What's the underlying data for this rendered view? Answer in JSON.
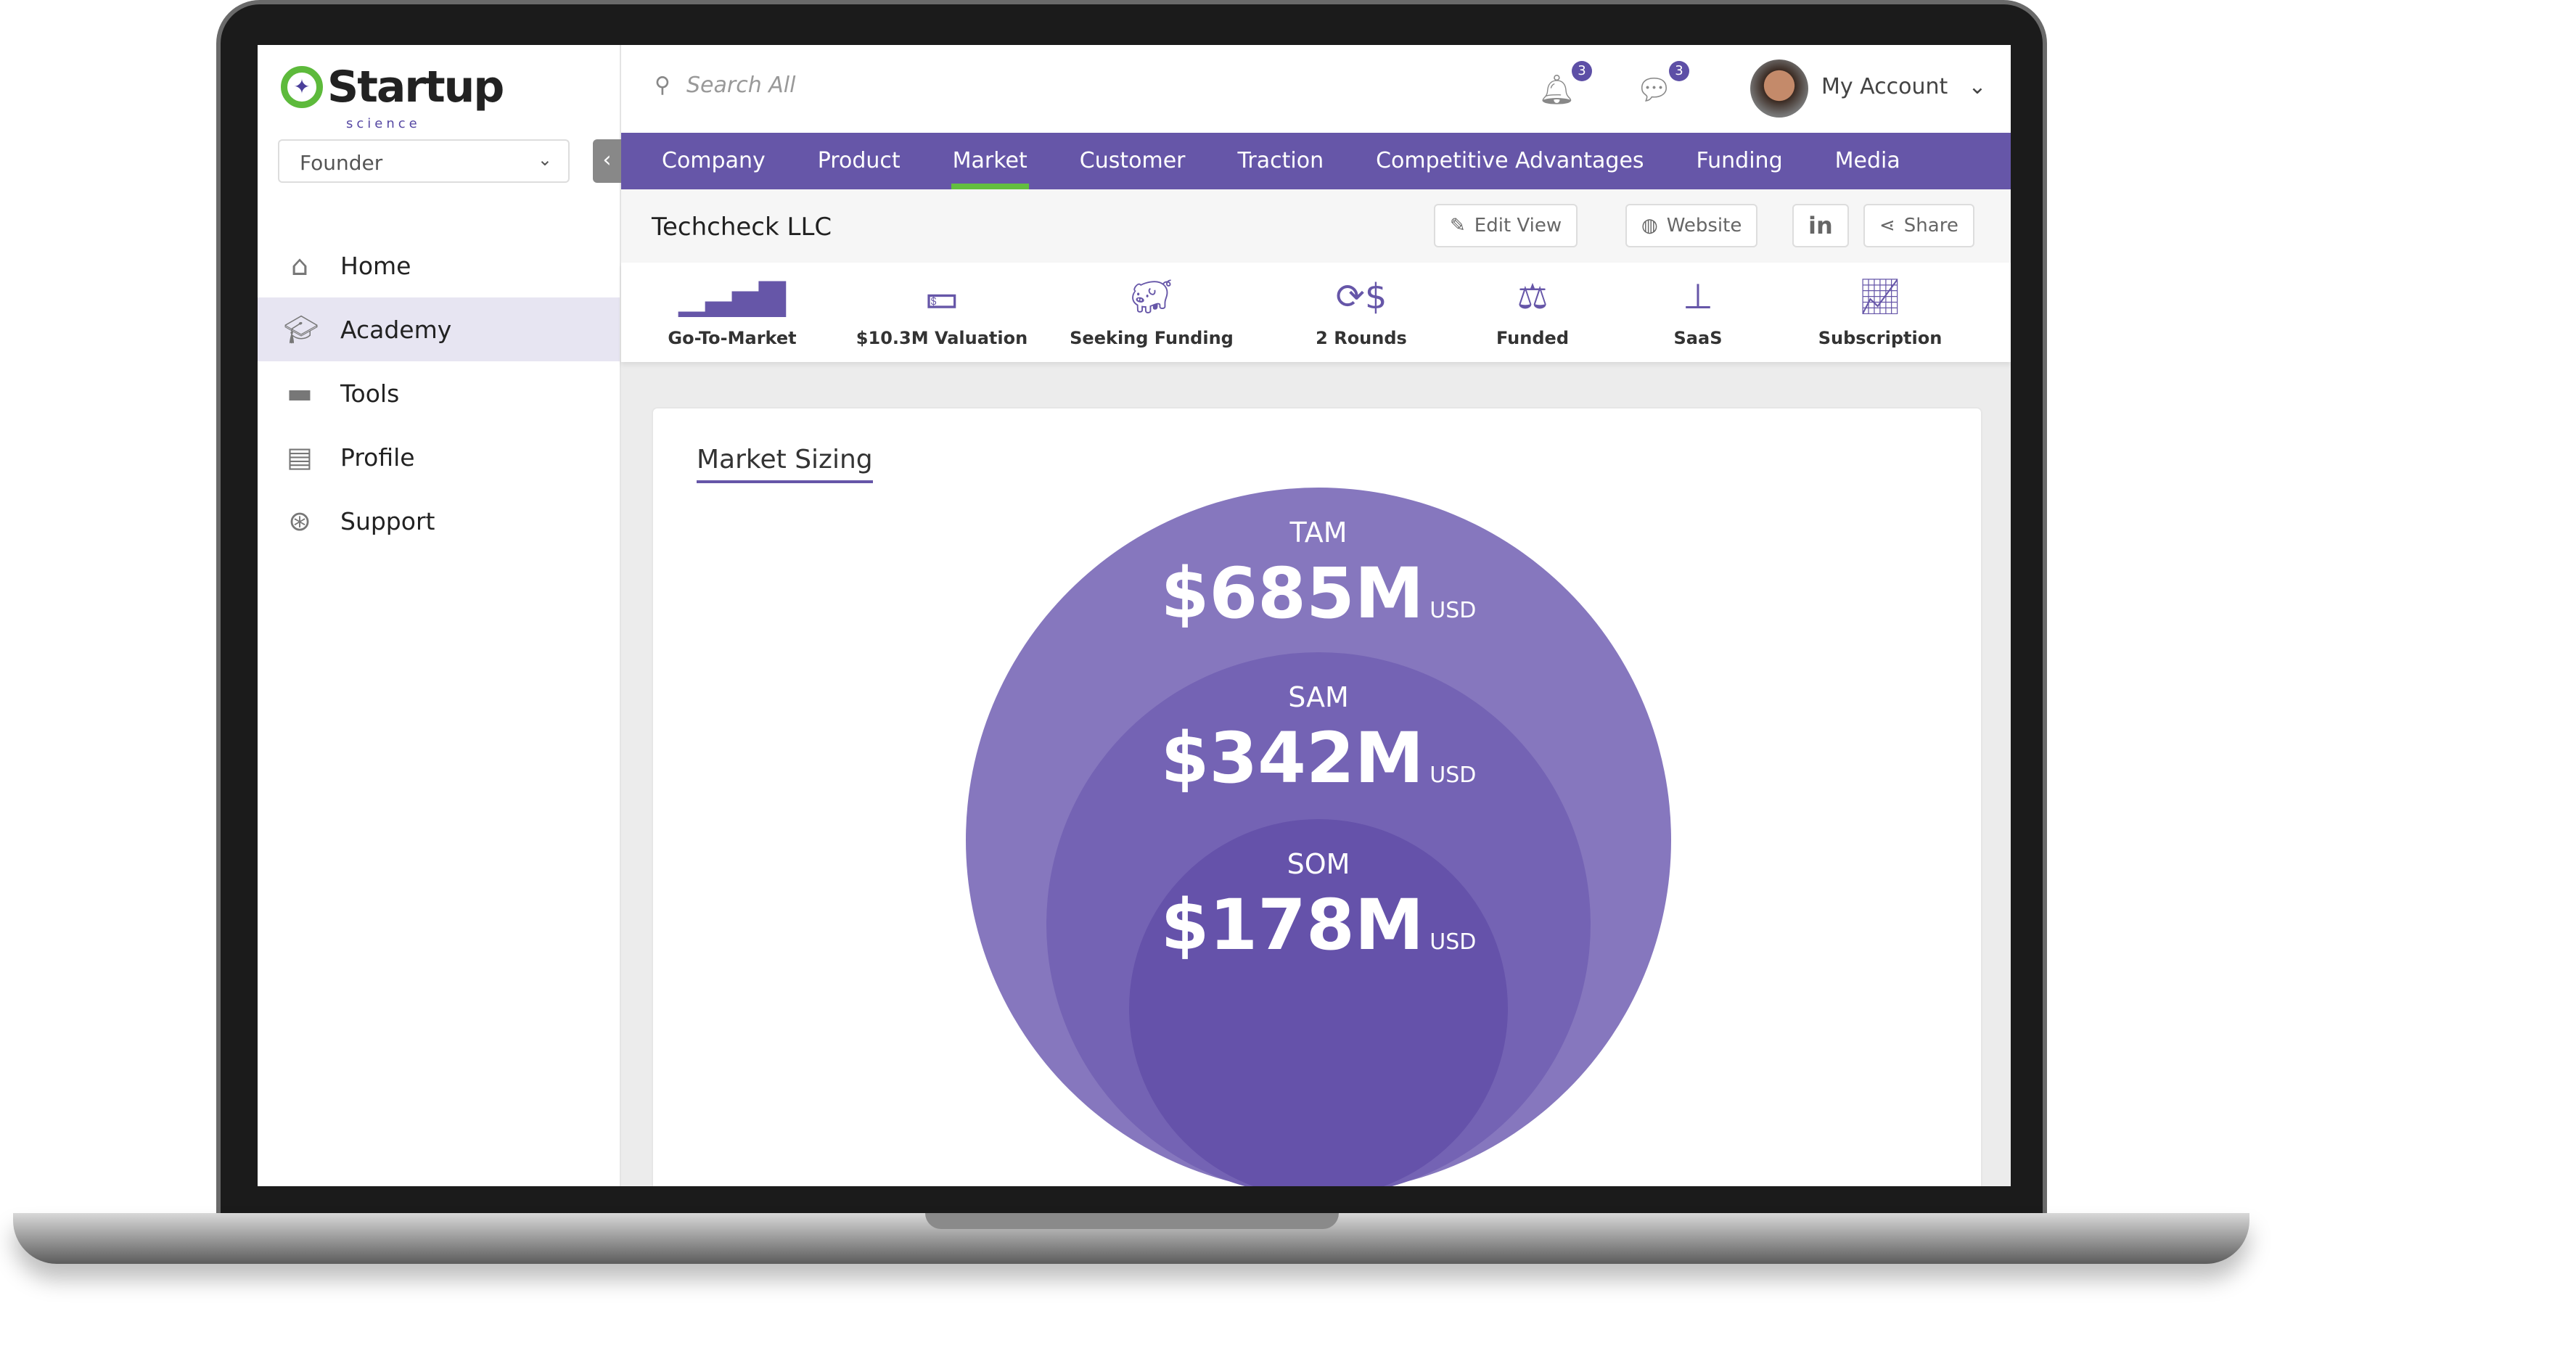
{
  "brand": {
    "name": "Startup",
    "sub": "science"
  },
  "sidebar": {
    "role": "Founder",
    "items": [
      {
        "label": "Home",
        "icon": "home-icon"
      },
      {
        "label": "Academy",
        "icon": "graduation-cap-icon"
      },
      {
        "label": "Tools",
        "icon": "toolbox-icon"
      },
      {
        "label": "Profile",
        "icon": "profile-icon"
      },
      {
        "label": "Support",
        "icon": "lifebuoy-icon"
      }
    ],
    "active": "Academy"
  },
  "header": {
    "search_placeholder": "Search All",
    "notifications": "3",
    "messages": "3",
    "account": "My Account"
  },
  "tabs": [
    "Company",
    "Product",
    "Market",
    "Customer",
    "Traction",
    "Competitive Advantages",
    "Funding",
    "Media"
  ],
  "active_tab": "Market",
  "company": {
    "name": "Techcheck LLC",
    "buttons": {
      "edit": "Edit View",
      "website": "Website",
      "linkedin": "in",
      "share": "Share"
    }
  },
  "stats": [
    {
      "label": "Go-To-Market",
      "icon": "signal-bars-icon"
    },
    {
      "label": "$10.3M Valuation",
      "icon": "money-icon"
    },
    {
      "label": "Seeking Funding",
      "icon": "piggy-bank-icon"
    },
    {
      "label": "2 Rounds",
      "icon": "dollar-cycle-icon"
    },
    {
      "label": "Funded",
      "icon": "scales-icon"
    },
    {
      "label": "SaaS",
      "icon": "hierarchy-icon"
    },
    {
      "label": "Subscription",
      "icon": "presentation-chart-icon"
    }
  ],
  "market": {
    "title": "Market Sizing",
    "tam": {
      "label": "TAM",
      "value": "$685M",
      "unit": "USD"
    },
    "sam": {
      "label": "SAM",
      "value": "$342M",
      "unit": "USD"
    },
    "som": {
      "label": "SOM",
      "value": "$178M",
      "unit": "USD"
    }
  },
  "colors": {
    "primary": "#6656a8",
    "accent": "#63be3f",
    "tam": "#8677be",
    "sam": "#7463b4",
    "som": "#6552aa"
  }
}
